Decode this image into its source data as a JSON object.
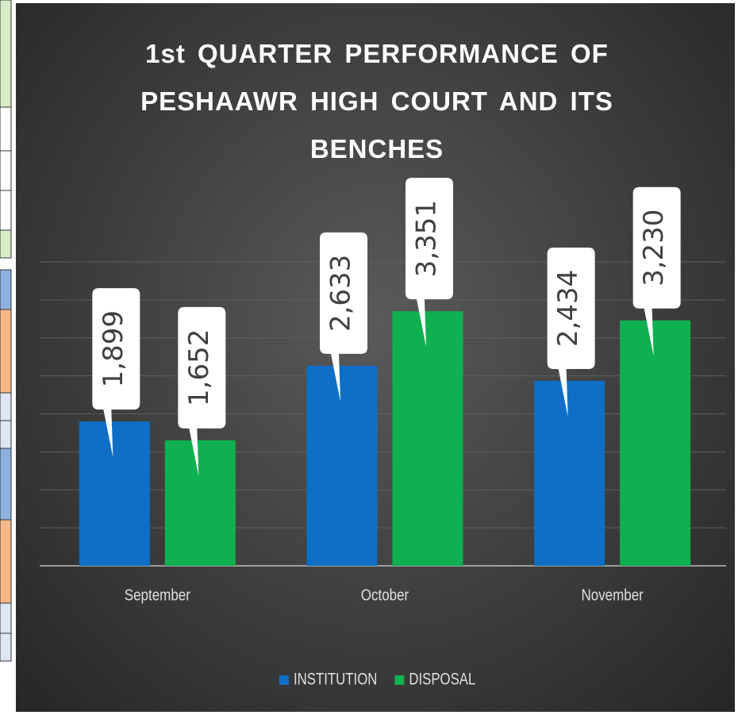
{
  "chart_data": {
    "type": "bar",
    "title": "1st QUARTER PERFORMANCE OF PESHAAWR HIGH COURT AND ITS BENCHES",
    "categories": [
      "September",
      "October",
      "November"
    ],
    "series": [
      {
        "name": "INSTITUTION",
        "color": "#0f6fc6",
        "values": [
          1899,
          2633,
          2434
        ],
        "value_labels": [
          "1,899",
          "2,633",
          "2,434"
        ]
      },
      {
        "name": "DISPOSAL",
        "color": "#0fb04f",
        "values": [
          1652,
          3351,
          3230
        ],
        "value_labels": [
          "1,652",
          "3,351",
          "3,230"
        ]
      }
    ],
    "ylim": [
      0,
      4000
    ],
    "yticks": [
      0,
      500,
      1000,
      1500,
      2000,
      2500,
      3000,
      3500,
      4000
    ],
    "grid": true,
    "legend": "bottom"
  }
}
